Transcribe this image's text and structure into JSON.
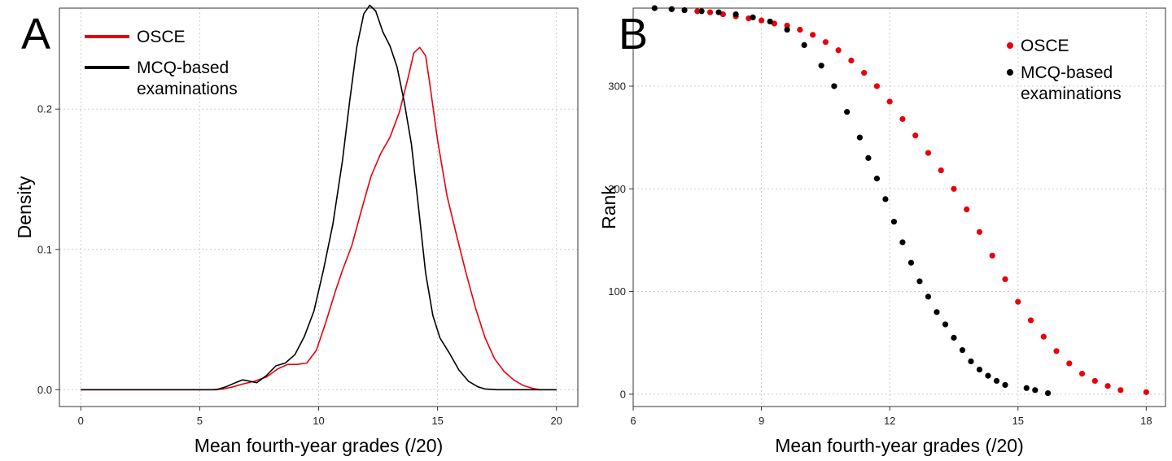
{
  "chart_data": [
    {
      "panel": "A",
      "type": "line",
      "xlabel": "Mean fourth-year grades (/20)",
      "ylabel": "Density",
      "xlim": [
        -0.9,
        20.9
      ],
      "ylim": [
        -0.012,
        0.272
      ],
      "xticks": [
        0,
        5,
        10,
        15,
        20
      ],
      "yticks": [
        0.0,
        0.1,
        0.2
      ],
      "ytick_labels": [
        "0.0",
        "0.1",
        "0.2"
      ],
      "grid": "dotted",
      "legend": {
        "placement": "top-left",
        "marker": "line"
      },
      "series": [
        {
          "name": "OSCE",
          "color": "#e8000b",
          "x": [
            0,
            5.5,
            6.0,
            6.4,
            6.8,
            7.3,
            7.8,
            8.3,
            8.7,
            9.1,
            9.5,
            9.9,
            10.3,
            10.7,
            11.0,
            11.4,
            11.8,
            12.2,
            12.6,
            13.0,
            13.4,
            13.8,
            14.0,
            14.25,
            14.5,
            14.7,
            15.0,
            15.4,
            15.8,
            16.2,
            16.6,
            17.0,
            17.4,
            17.8,
            18.2,
            18.6,
            19.0,
            19.3,
            20.0
          ],
          "y": [
            0,
            0,
            0.0005,
            0.002,
            0.004,
            0.006,
            0.009,
            0.015,
            0.018,
            0.018,
            0.019,
            0.028,
            0.048,
            0.07,
            0.085,
            0.103,
            0.128,
            0.152,
            0.168,
            0.18,
            0.198,
            0.225,
            0.24,
            0.244,
            0.238,
            0.215,
            0.178,
            0.138,
            0.11,
            0.083,
            0.058,
            0.037,
            0.022,
            0.013,
            0.007,
            0.003,
            0.001,
            0,
            0
          ]
        },
        {
          "name": "MCQ-based\nexaminations",
          "color": "#000000",
          "x": [
            0,
            5.7,
            6.1,
            6.5,
            6.8,
            7.1,
            7.4,
            7.8,
            8.2,
            8.6,
            9.0,
            9.4,
            9.8,
            10.2,
            10.6,
            11.0,
            11.3,
            11.6,
            11.9,
            12.15,
            12.4,
            12.7,
            13.0,
            13.3,
            13.6,
            13.9,
            14.2,
            14.5,
            14.8,
            15.1,
            15.5,
            15.9,
            16.3,
            16.7,
            17.0,
            17.5,
            20.0
          ],
          "y": [
            0,
            0,
            0.002,
            0.005,
            0.007,
            0.006,
            0.005,
            0.01,
            0.017,
            0.019,
            0.025,
            0.038,
            0.056,
            0.085,
            0.118,
            0.163,
            0.205,
            0.244,
            0.268,
            0.274,
            0.27,
            0.255,
            0.245,
            0.23,
            0.205,
            0.175,
            0.13,
            0.083,
            0.053,
            0.037,
            0.026,
            0.014,
            0.006,
            0.002,
            0.0005,
            0,
            0
          ]
        }
      ]
    },
    {
      "panel": "B",
      "type": "scatter",
      "xlabel": "Mean fourth-year grades (/20)",
      "ylabel": "Rank",
      "xlim": [
        6.0,
        18.45
      ],
      "ylim": [
        -12,
        376
      ],
      "xticks": [
        6,
        9,
        12,
        15,
        18
      ],
      "yticks": [
        0,
        100,
        200,
        300
      ],
      "grid": "dotted",
      "legend": {
        "placement": "top-right",
        "marker": "point"
      },
      "series": [
        {
          "name": "OSCE",
          "color": "#e8000b",
          "x": [
            6.9,
            7.2,
            7.5,
            7.8,
            8.1,
            8.4,
            8.7,
            9.0,
            9.3,
            9.6,
            9.9,
            10.2,
            10.5,
            10.8,
            11.1,
            11.4,
            11.7,
            12.0,
            12.3,
            12.6,
            12.9,
            13.2,
            13.5,
            13.8,
            14.1,
            14.4,
            14.7,
            15.0,
            15.3,
            15.6,
            15.9,
            16.2,
            16.5,
            16.8,
            17.1,
            17.4,
            18.0
          ],
          "y": [
            375,
            374,
            373,
            372,
            370,
            368,
            366,
            364,
            361,
            359,
            355,
            350,
            343,
            335,
            325,
            313,
            300,
            285,
            268,
            252,
            235,
            218,
            200,
            180,
            158,
            135,
            112,
            90,
            72,
            56,
            42,
            30,
            20,
            13,
            8,
            4,
            2
          ]
        },
        {
          "name": "MCQ-based\nexaminations",
          "color": "#000000",
          "x": [
            6.5,
            6.9,
            7.2,
            7.6,
            8.0,
            8.4,
            8.8,
            9.2,
            9.6,
            10.0,
            10.4,
            10.7,
            11.0,
            11.3,
            11.5,
            11.7,
            11.9,
            12.1,
            12.3,
            12.5,
            12.7,
            12.9,
            13.1,
            13.3,
            13.5,
            13.7,
            13.9,
            14.1,
            14.3,
            14.5,
            14.7,
            15.2,
            15.4,
            15.7
          ],
          "y": [
            376,
            375,
            374,
            373,
            372,
            370,
            367,
            363,
            355,
            340,
            320,
            300,
            275,
            250,
            230,
            210,
            190,
            168,
            148,
            128,
            110,
            95,
            80,
            68,
            55,
            43,
            32,
            24,
            18,
            13,
            9,
            6,
            4,
            1
          ]
        }
      ]
    }
  ]
}
